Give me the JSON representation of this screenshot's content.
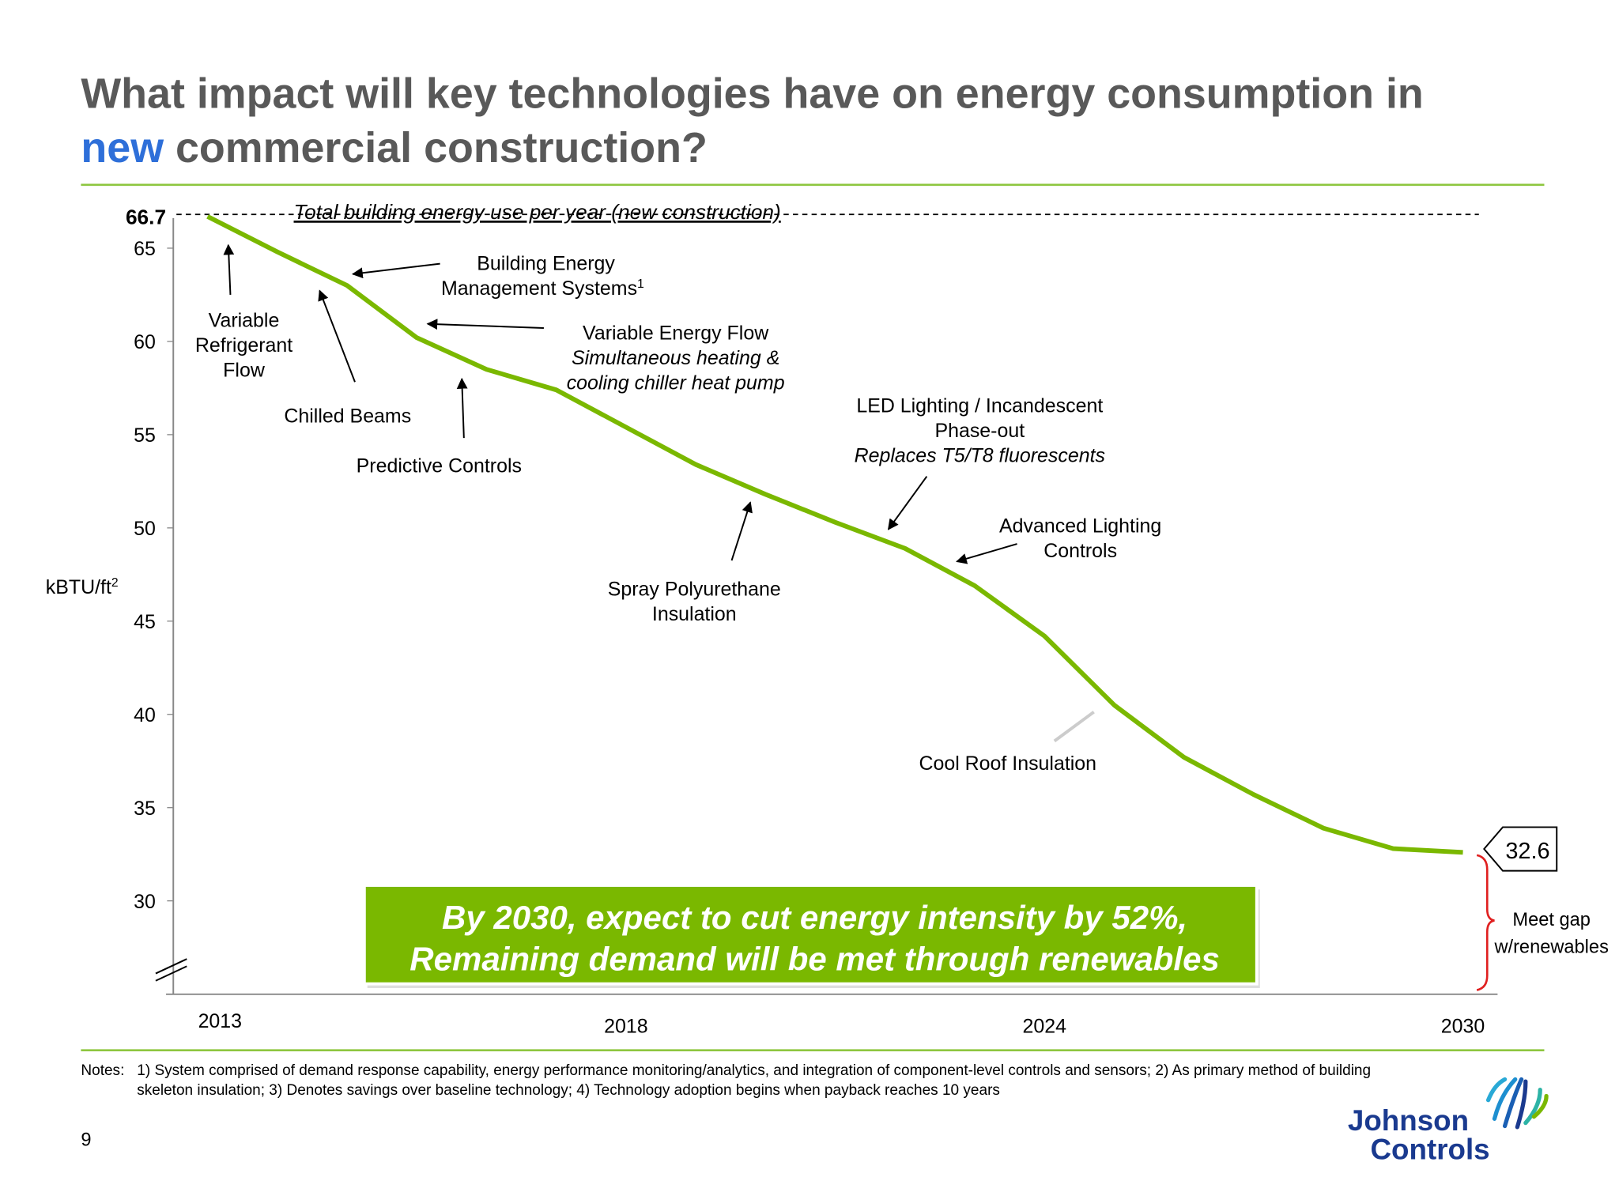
{
  "title": {
    "line1": "What impact will key technologies have on energy consumption in",
    "highlight": "new",
    "line2_rest": " commercial construction?"
  },
  "colors": {
    "title": "#595959",
    "highlight": "#2e6fd9",
    "line": "#7ab800",
    "rule": "#8dc63f",
    "banner": "#7ab800",
    "brace": "#e02020",
    "logo_text": "#1a3a8f"
  },
  "chart_data": {
    "type": "line",
    "title": "Total building energy use per year (new construction)",
    "ylabel": "kBTU/ft",
    "ylabel_sup": "2",
    "ylim": [
      25,
      67
    ],
    "yticks": [
      30,
      35,
      40,
      45,
      50,
      55,
      60,
      65
    ],
    "ytick_labels": [
      "30",
      "35",
      "40",
      "45",
      "50",
      "55",
      "60",
      "65"
    ],
    "baseline_value": 66.7,
    "baseline_label": "66.7",
    "xtick_labels": [
      {
        "index": 0,
        "label": "2013"
      },
      {
        "index": 6,
        "label": "2018"
      },
      {
        "index": 12,
        "label": "2024"
      },
      {
        "index": 18,
        "label": "2030"
      }
    ],
    "values": [
      66.7,
      64.8,
      63.0,
      60.2,
      58.5,
      57.4,
      55.4,
      53.4,
      51.8,
      50.3,
      48.9,
      46.9,
      44.2,
      40.5,
      37.7,
      35.7,
      33.9,
      32.8,
      32.6
    ],
    "end_value_label": "32.6",
    "grid": false,
    "annotations": {
      "vrf": [
        "Variable",
        "Refrigerant",
        "Flow"
      ],
      "bems": [
        "Building Energy",
        "Management Systems"
      ],
      "bems_sup": "1",
      "chilled": "Chilled Beams",
      "vef": [
        "Variable Energy Flow",
        "Simultaneous heating &",
        "cooling chiller heat pump"
      ],
      "predictive": "Predictive Controls",
      "led": [
        "LED Lighting / Incandescent",
        "Phase-out",
        "Replaces T5/T8 fluorescents"
      ],
      "spray": [
        "Spray Polyurethane",
        "Insulation"
      ],
      "alc": [
        "Advanced Lighting",
        "Controls"
      ],
      "roof": "Cool Roof Insulation",
      "gap": [
        "Meet gap",
        "w/renewables"
      ]
    }
  },
  "banner": {
    "line1": "By 2030, expect  to cut energy intensity by 52%,",
    "line2": "Remaining demand will be met through renewables"
  },
  "notes": {
    "label": "Notes:",
    "line1": "1) System comprised of demand response capability, energy performance monitoring/analytics, and integration of component-level controls and sensors; 2) As primary method of building",
    "line2": "skeleton insulation; 3) Denotes savings over baseline technology; 4) Technology adoption begins when payback reaches 10 years"
  },
  "page_number": "9",
  "logo": {
    "line1": "Johnson",
    "line2": "Controls"
  }
}
